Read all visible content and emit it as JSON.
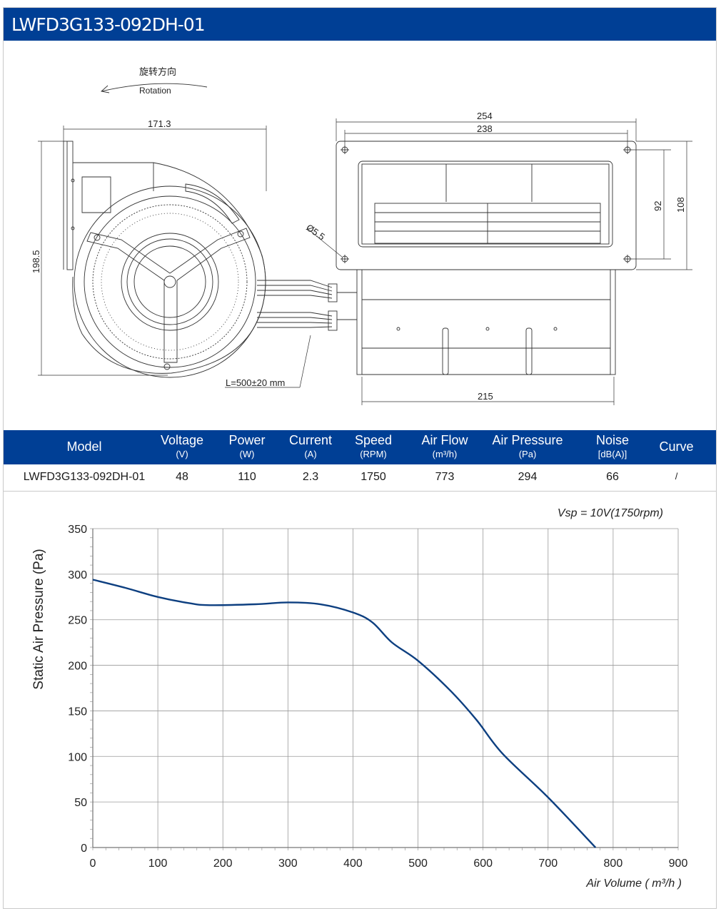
{
  "title": "LWFD3G133-092DH-01",
  "drawing": {
    "rotation_cn": "旋转方向",
    "rotation_en": "Rotation",
    "dim_width": "171.3",
    "dim_height": "198.5",
    "dim_254": "254",
    "dim_238": "238",
    "dim_92": "92",
    "dim_108": "108",
    "dim_hole": "Ø5.5",
    "dim_215": "215",
    "cable_length": "L=500±20 mm"
  },
  "specs": {
    "headers": [
      {
        "label": "Model",
        "unit": ""
      },
      {
        "label": "Voltage",
        "unit": "(V)"
      },
      {
        "label": "Power",
        "unit": "(W)"
      },
      {
        "label": "Current",
        "unit": "(A)"
      },
      {
        "label": "Speed",
        "unit": "(RPM)"
      },
      {
        "label": "Air Flow",
        "unit": "(m³/h)"
      },
      {
        "label": "Air Pressure",
        "unit": "(Pa)"
      },
      {
        "label": "Noise",
        "unit": "[dB(A)]"
      },
      {
        "label": "Curve",
        "unit": ""
      }
    ],
    "row": [
      "LWFD3G133-092DH-01",
      "48",
      "110",
      "2.3",
      "1750",
      "773",
      "294",
      "66",
      "/"
    ]
  },
  "chart_data": {
    "type": "line",
    "annotation": "Vsp = 10V(1750rpm)",
    "xlabel": "Air Volume ( m³/h )",
    "ylabel": "Static Air Pressure  (Pa)",
    "xlim": [
      0,
      900
    ],
    "ylim": [
      0,
      350
    ],
    "xticks": [
      0,
      100,
      200,
      300,
      400,
      500,
      600,
      700,
      800,
      900
    ],
    "yticks": [
      0,
      50,
      100,
      150,
      200,
      250,
      300,
      350
    ],
    "grid": true,
    "line_color": "#0d3f80",
    "series": [
      {
        "x": [
          0,
          50,
          100,
          150,
          180,
          250,
          300,
          350,
          400,
          430,
          460,
          500,
          550,
          590,
          630,
          700,
          773
        ],
        "y": [
          294,
          285,
          275,
          268,
          266,
          267,
          269,
          267,
          258,
          247,
          225,
          205,
          172,
          140,
          103,
          55,
          0
        ]
      }
    ]
  }
}
